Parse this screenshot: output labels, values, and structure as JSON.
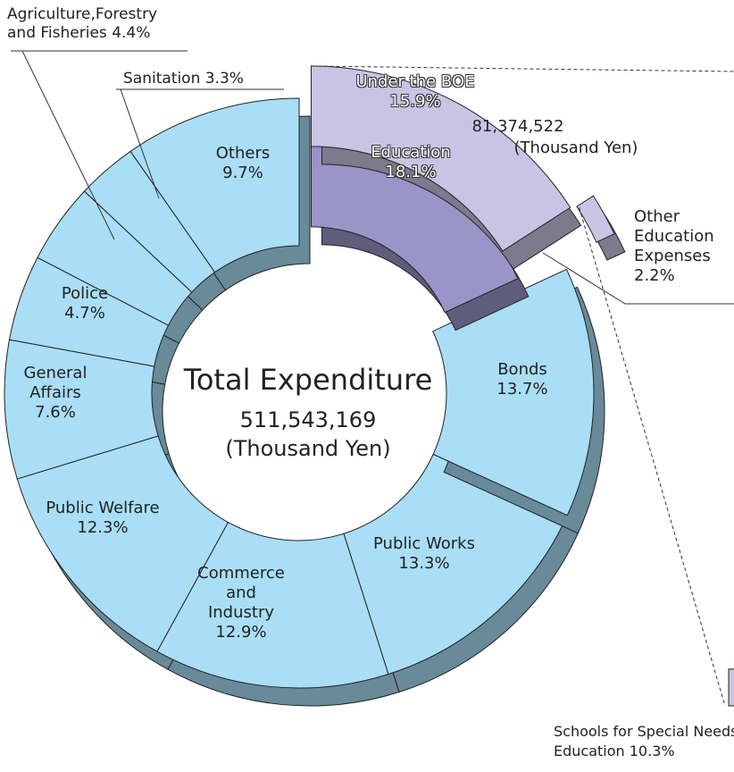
{
  "chart_data": {
    "type": "donut",
    "categories": [
      "Education",
      "Bonds",
      "Public Works",
      "Commerce and Industry",
      "Public Welfare",
      "General Affairs",
      "Police",
      "Agriculture,Forestry and Fisheries",
      "Sanitation",
      "Others"
    ],
    "values": [
      18.1,
      13.7,
      13.3,
      12.9,
      12.3,
      7.6,
      4.7,
      4.4,
      3.3,
      9.7
    ],
    "value_labels": [
      "18.1%",
      "13.7%",
      "13.3%",
      "12.9%",
      "12.3%",
      "7.6%",
      "4.7%",
      "4.4%",
      "3.3%",
      "9.7%"
    ],
    "colors": [
      "#9a94c8",
      "#a9def6",
      "#a9def6",
      "#a9def6",
      "#a9def6",
      "#a9def6",
      "#a9def6",
      "#a9def6",
      "#a9def6",
      "#a9def6"
    ],
    "center_title": "Total Expenditure",
    "total": {
      "value": 511543169,
      "label": "511,543,169"
    },
    "unit": "(Thousand Yen)",
    "education_breakdown": [
      {
        "name": "Under the BOE",
        "value": 15.9,
        "value_label": "15.9%",
        "amount": {
          "value": 81374522,
          "label": "81,374,522"
        },
        "unit": "(Thousand Yen)",
        "color": "#c9c4e4"
      },
      {
        "name": "Other Education Expenses",
        "value": 2.2,
        "value_label": "2.2%",
        "color": "#c9c4e4"
      }
    ],
    "boe_breakdown": [
      {
        "name": "Schools for Special Needs Education",
        "value": 10.3,
        "value_label": "10.3%",
        "color": "#c9c4e4"
      }
    ]
  }
}
